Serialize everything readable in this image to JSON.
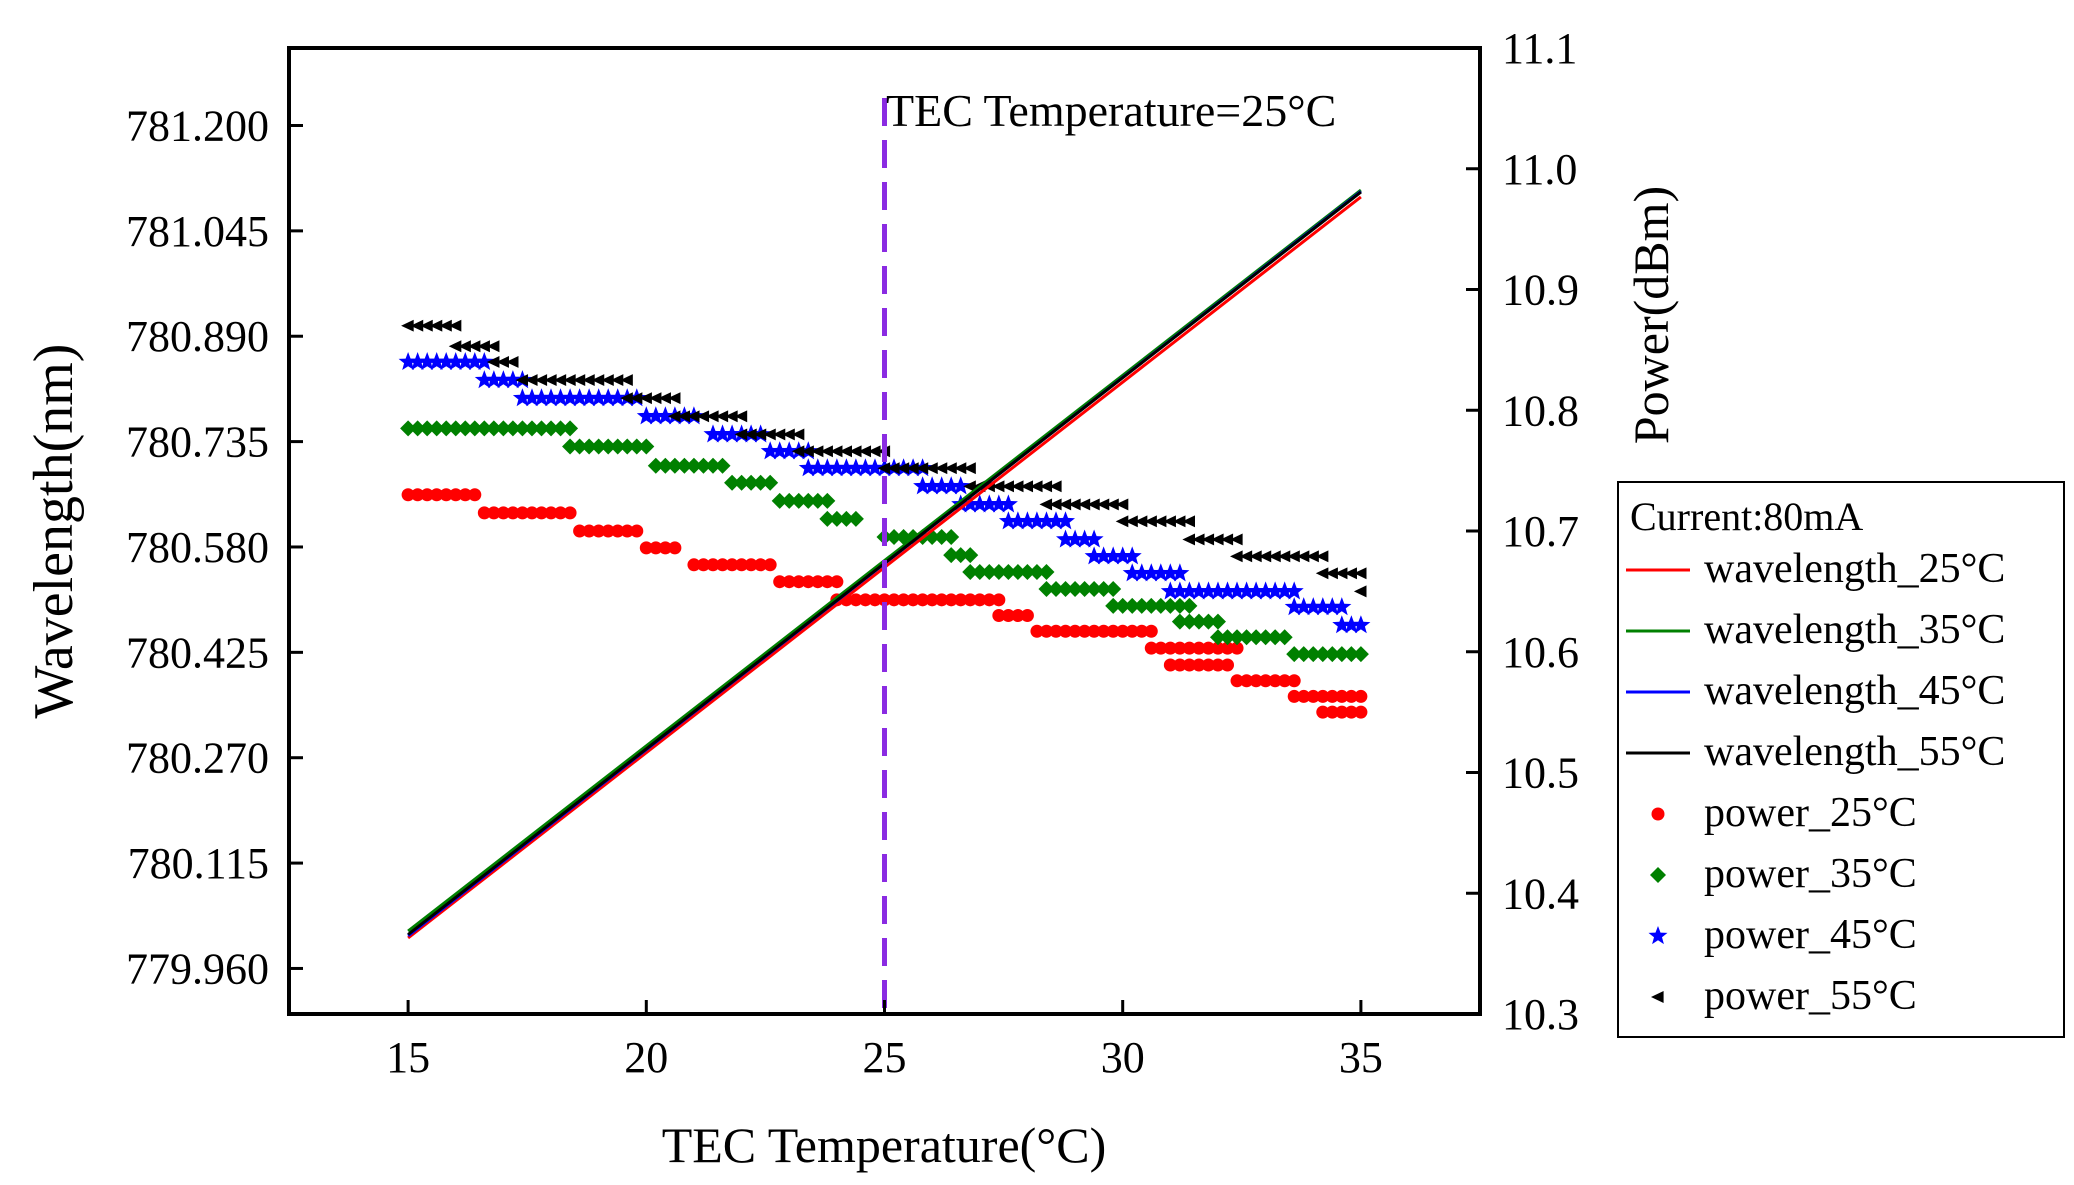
{
  "chart_data": {
    "type": "line+scatter",
    "xlabel": "TEC Temperature(°C)",
    "ylabel_left": "Wavelength(nm)",
    "ylabel_right": "Power(dBm)",
    "xlim": [
      12.5,
      37.5
    ],
    "ylim_left": [
      779.893,
      781.314
    ],
    "ylim_right": [
      10.3,
      11.1
    ],
    "xticks": [
      "15",
      "20",
      "25",
      "30",
      "35"
    ],
    "yticks_left": [
      "779.960",
      "780.115",
      "780.270",
      "780.425",
      "780.580",
      "780.735",
      "780.890",
      "781.045",
      "781.200"
    ],
    "yticks_right": [
      "10.3",
      "10.4",
      "10.5",
      "10.6",
      "10.7",
      "10.8",
      "10.9",
      "11.0",
      "11.1"
    ],
    "annotation": "TEC Temperature=25°C",
    "annotation_x": 25,
    "legend_title": "Current:80mA",
    "colors": {
      "c25": "#ff0000",
      "c35": "#008000",
      "c45": "#0000ff",
      "c55": "#000000",
      "marker": "#8a2be2"
    },
    "wavelength_series": [
      {
        "name": "wavelength_25°C",
        "color": "#ff0000",
        "x": [
          15,
          35
        ],
        "y": [
          780.005,
          781.095
        ]
      },
      {
        "name": "wavelength_35°C",
        "color": "#008000",
        "x": [
          15,
          35
        ],
        "y": [
          780.015,
          781.105
        ]
      },
      {
        "name": "wavelength_45°C",
        "color": "#0000ff",
        "x": [
          15,
          35
        ],
        "y": [
          780.008,
          781.103
        ]
      },
      {
        "name": "wavelength_55°C",
        "color": "#000000",
        "x": [
          15,
          35
        ],
        "y": [
          780.01,
          781.102
        ]
      }
    ],
    "power_series": [
      {
        "name": "power_25°C",
        "color": "#ff0000",
        "marker": "circle",
        "step": 0.2,
        "segments": [
          [
            15.0,
            16.4,
            10.73
          ],
          [
            16.6,
            18.4,
            10.715
          ],
          [
            18.6,
            19.8,
            10.7
          ],
          [
            20.0,
            20.6,
            10.686
          ],
          [
            21.0,
            22.6,
            10.672
          ],
          [
            22.8,
            24.0,
            10.658
          ],
          [
            24.0,
            27.4,
            10.643
          ],
          [
            27.4,
            28.0,
            10.63
          ],
          [
            28.2,
            30.6,
            10.617
          ],
          [
            30.6,
            32.4,
            10.603
          ],
          [
            31.0,
            32.2,
            10.589
          ],
          [
            32.4,
            33.6,
            10.576
          ],
          [
            33.6,
            35.0,
            10.563
          ],
          [
            34.2,
            35.0,
            10.55
          ]
        ]
      },
      {
        "name": "power_35°C",
        "color": "#008000",
        "marker": "diamond",
        "step": 0.2,
        "segments": [
          [
            15.0,
            18.4,
            10.785
          ],
          [
            18.4,
            20.0,
            10.77
          ],
          [
            20.2,
            21.6,
            10.754
          ],
          [
            21.8,
            22.6,
            10.74
          ],
          [
            22.8,
            23.8,
            10.725
          ],
          [
            23.8,
            24.4,
            10.71
          ],
          [
            25.0,
            26.4,
            10.695
          ],
          [
            26.4,
            26.8,
            10.68
          ],
          [
            26.8,
            28.4,
            10.666
          ],
          [
            28.4,
            29.8,
            10.652
          ],
          [
            29.8,
            31.4,
            10.638
          ],
          [
            31.2,
            32.0,
            10.625
          ],
          [
            32.0,
            33.4,
            10.612
          ],
          [
            33.6,
            35.0,
            10.598
          ]
        ]
      },
      {
        "name": "power_45°C",
        "color": "#0000ff",
        "marker": "star",
        "step": 0.2,
        "segments": [
          [
            15.0,
            16.6,
            10.84
          ],
          [
            16.6,
            17.4,
            10.825
          ],
          [
            17.4,
            19.8,
            10.81
          ],
          [
            20.0,
            21.0,
            10.795
          ],
          [
            21.4,
            22.4,
            10.78
          ],
          [
            22.6,
            23.4,
            10.766
          ],
          [
            23.4,
            25.8,
            10.752
          ],
          [
            25.8,
            26.6,
            10.737
          ],
          [
            26.6,
            27.6,
            10.722
          ],
          [
            27.6,
            28.8,
            10.708
          ],
          [
            28.8,
            29.4,
            10.693
          ],
          [
            29.4,
            30.2,
            10.679
          ],
          [
            30.2,
            31.2,
            10.665
          ],
          [
            31.0,
            33.6,
            10.65
          ],
          [
            33.6,
            34.6,
            10.637
          ],
          [
            34.6,
            35.0,
            10.622
          ]
        ]
      },
      {
        "name": "power_55°C",
        "color": "#000000",
        "marker": "triangle-left",
        "step": 0.2,
        "segments": [
          [
            15.0,
            16.0,
            10.87
          ],
          [
            16.0,
            16.8,
            10.853
          ],
          [
            16.8,
            17.2,
            10.84
          ],
          [
            17.4,
            19.6,
            10.825
          ],
          [
            19.6,
            20.6,
            10.81
          ],
          [
            20.6,
            22.0,
            10.795
          ],
          [
            22.0,
            23.2,
            10.78
          ],
          [
            23.2,
            25.0,
            10.766
          ],
          [
            25.0,
            26.8,
            10.752
          ],
          [
            26.8,
            28.6,
            10.737
          ],
          [
            28.4,
            30.0,
            10.722
          ],
          [
            30.0,
            31.4,
            10.708
          ],
          [
            31.4,
            32.4,
            10.693
          ],
          [
            32.4,
            34.2,
            10.679
          ],
          [
            34.2,
            35.0,
            10.665
          ],
          [
            35.0,
            35.0,
            10.65
          ]
        ]
      }
    ]
  }
}
